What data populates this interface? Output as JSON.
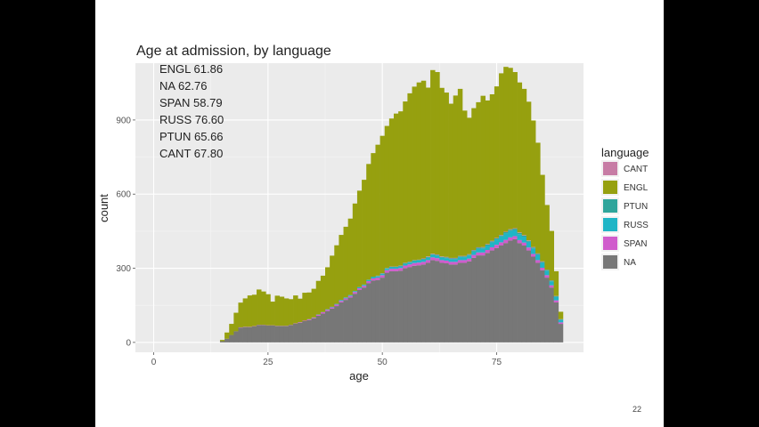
{
  "slide": {
    "page_number": "22"
  },
  "chart_data": {
    "type": "bar",
    "subtype": "stacked-histogram",
    "title": "Age at admission, by language",
    "xlabel": "age",
    "ylabel": "count",
    "xlim": [
      -4,
      94
    ],
    "ylim": [
      -40,
      1130
    ],
    "x_ticks": [
      0,
      25,
      50,
      75
    ],
    "y_ticks": [
      0,
      300,
      600,
      900
    ],
    "grid": true,
    "legend": {
      "title": "language",
      "placement": "right",
      "entries": [
        {
          "name": "CANT",
          "color": "#C77CA5"
        },
        {
          "name": "ENGL",
          "color": "#96A00F"
        },
        {
          "name": "PTUN",
          "color": "#2FA59B"
        },
        {
          "name": "RUSS",
          "color": "#1FB5C6"
        },
        {
          "name": "SPAN",
          "color": "#D05CCC"
        },
        {
          "name": "NA",
          "color": "#777777"
        }
      ]
    },
    "annotations": [
      "ENGL 61.86",
      "NA 62.76",
      "SPAN 58.79",
      "RUSS 76.60",
      "PTUN 65.66",
      "CANT 67.80"
    ],
    "bin_width": 1,
    "bins_x": [
      15,
      16,
      17,
      18,
      19,
      20,
      21,
      22,
      23,
      24,
      25,
      26,
      27,
      28,
      29,
      30,
      31,
      32,
      33,
      34,
      35,
      36,
      37,
      38,
      39,
      40,
      41,
      42,
      43,
      44,
      45,
      46,
      47,
      48,
      49,
      50,
      51,
      52,
      53,
      54,
      55,
      56,
      57,
      58,
      59,
      60,
      61,
      62,
      63,
      64,
      65,
      66,
      67,
      68,
      69,
      70,
      71,
      72,
      73,
      74,
      75,
      76,
      77,
      78,
      79,
      80,
      81,
      82,
      83,
      84,
      85,
      86,
      87,
      88,
      89
    ],
    "series": [
      {
        "name": "NA",
        "values": [
          5,
          15,
          30,
          45,
          60,
          62,
          62,
          65,
          70,
          70,
          68,
          68,
          66,
          66,
          66,
          70,
          76,
          80,
          86,
          90,
          97,
          108,
          117,
          127,
          137,
          147,
          162,
          172,
          182,
          197,
          212,
          222,
          240,
          250,
          252,
          262,
          282,
          288,
          288,
          290,
          300,
          305,
          310,
          312,
          315,
          322,
          333,
          330,
          322,
          320,
          315,
          315,
          322,
          322,
          328,
          342,
          352,
          352,
          362,
          372,
          382,
          392,
          402,
          412,
          418,
          402,
          392,
          372,
          347,
          322,
          292,
          262,
          222,
          162,
          75
        ]
      },
      {
        "name": "SPAN",
        "values": [
          0,
          0,
          0,
          0,
          1,
          1,
          1,
          1,
          1,
          1,
          1,
          1,
          1,
          1,
          1,
          1,
          1,
          2,
          2,
          3,
          3,
          4,
          5,
          5,
          5,
          6,
          6,
          6,
          6,
          7,
          7,
          7,
          8,
          9,
          10,
          10,
          10,
          10,
          10,
          11,
          11,
          11,
          11,
          11,
          11,
          11,
          11,
          11,
          11,
          11,
          11,
          11,
          11,
          11,
          11,
          12,
          12,
          12,
          12,
          13,
          13,
          13,
          13,
          13,
          12,
          12,
          12,
          12,
          11,
          11,
          10,
          10,
          9,
          8,
          6
        ]
      },
      {
        "name": "RUSS",
        "values": [
          0,
          0,
          0,
          0,
          0,
          0,
          0,
          0,
          0,
          0,
          0,
          0,
          0,
          0,
          0,
          0,
          0,
          0,
          0,
          1,
          1,
          1,
          1,
          2,
          2,
          2,
          3,
          3,
          3,
          3,
          4,
          4,
          4,
          5,
          5,
          5,
          6,
          6,
          6,
          6,
          7,
          7,
          8,
          8,
          9,
          10,
          10,
          10,
          10,
          10,
          11,
          11,
          12,
          12,
          13,
          14,
          15,
          16,
          18,
          20,
          22,
          24,
          26,
          26,
          25,
          24,
          24,
          23,
          22,
          21,
          20,
          18,
          16,
          14,
          10
        ]
      },
      {
        "name": "PTUN",
        "values": [
          0,
          0,
          0,
          0,
          0,
          0,
          0,
          0,
          0,
          0,
          0,
          0,
          0,
          0,
          0,
          0,
          0,
          0,
          0,
          0,
          0,
          0,
          0,
          0,
          0,
          1,
          1,
          1,
          1,
          1,
          1,
          1,
          2,
          2,
          2,
          2,
          2,
          2,
          2,
          3,
          3,
          3,
          3,
          3,
          3,
          3,
          3,
          3,
          3,
          3,
          3,
          3,
          3,
          3,
          3,
          4,
          4,
          4,
          4,
          4,
          4,
          4,
          5,
          5,
          5,
          5,
          4,
          4,
          4,
          4,
          4,
          3,
          3,
          3,
          2
        ]
      },
      {
        "name": "CANT",
        "values": [
          0,
          0,
          0,
          0,
          0,
          0,
          0,
          0,
          0,
          0,
          0,
          0,
          0,
          0,
          0,
          0,
          0,
          0,
          0,
          0,
          0,
          0,
          0,
          0,
          0,
          0,
          0,
          0,
          0,
          0,
          0,
          0,
          0,
          0,
          1,
          1,
          1,
          1,
          1,
          1,
          1,
          1,
          1,
          1,
          2,
          2,
          2,
          2,
          2,
          2,
          2,
          2,
          2,
          2,
          2,
          2,
          2,
          2,
          2,
          2,
          2,
          2,
          2,
          2,
          2,
          2,
          2,
          2,
          2,
          2,
          2,
          1,
          1,
          1,
          1
        ]
      },
      {
        "name": "ENGL",
        "values": [
          5,
          25,
          45,
          75,
          100,
          115,
          127,
          127,
          143,
          135,
          126,
          96,
          122,
          118,
          111,
          104,
          113,
          95,
          113,
          108,
          116,
          136,
          147,
          170,
          207,
          237,
          263,
          286,
          309,
          354,
          390,
          424,
          468,
          500,
          530,
          556,
          575,
          599,
          619,
          624,
          653,
          681,
          702,
          717,
          719,
          683,
          743,
          738,
          682,
          665,
          624,
          657,
          676,
          588,
          552,
          574,
          587,
          612,
          581,
          593,
          613,
          654,
          667,
          653,
          632,
          607,
          592,
          561,
          512,
          448,
          350,
          262,
          200,
          100,
          30
        ]
      }
    ]
  }
}
